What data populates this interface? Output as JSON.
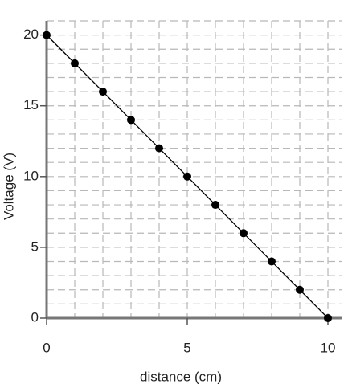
{
  "chart_data": {
    "type": "line",
    "x_label": "distance (cm)",
    "y_label": "Voltage (V)",
    "x": [
      0,
      1,
      2,
      3,
      4,
      5,
      6,
      7,
      8,
      9,
      10
    ],
    "series": [
      {
        "color": "#000000",
        "values": [
          20,
          18,
          16,
          14,
          12,
          10,
          8,
          6,
          4,
          2,
          0
        ]
      }
    ],
    "xlim": [
      0,
      10.5
    ],
    "ylim": [
      0,
      21
    ],
    "xticks": [
      0,
      5,
      10
    ],
    "yticks": [
      0,
      5,
      10,
      15,
      20
    ],
    "xgrid": [
      1,
      2,
      3,
      4,
      5,
      6,
      7,
      8,
      9,
      10
    ],
    "ygrid": [
      1,
      2,
      3,
      4,
      5,
      6,
      7,
      8,
      9,
      10,
      11,
      12,
      13,
      14,
      15,
      16,
      17,
      18,
      19,
      20,
      21
    ],
    "grid": true,
    "markers": true
  }
}
